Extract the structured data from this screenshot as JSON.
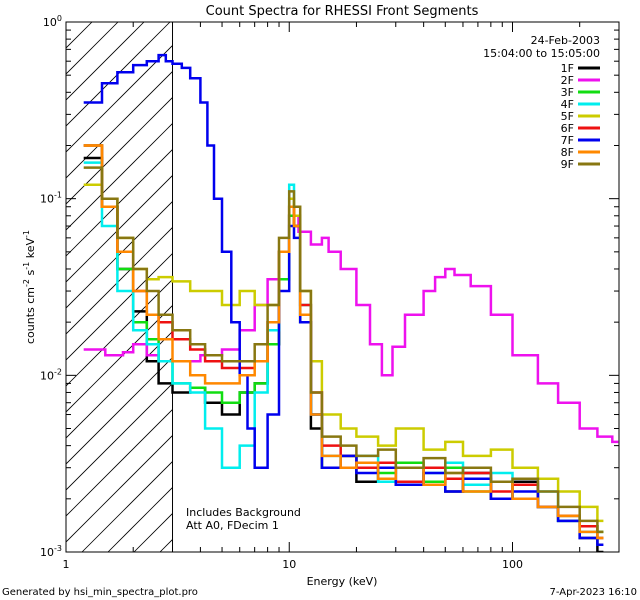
{
  "chart_data": {
    "type": "line",
    "title": "Count Spectra for RHESSI Front Segments",
    "xlabel": "Energy (keV)",
    "ylabel_parts": [
      "counts cm",
      "-2",
      " s",
      "-1",
      " keV",
      "-1"
    ],
    "x_scale": "log",
    "y_scale": "log",
    "xlim": [
      1,
      300
    ],
    "ylim": [
      0.001,
      1
    ],
    "x_ticks": [
      {
        "value": 1,
        "label": "1"
      },
      {
        "value": 10,
        "label": "10"
      },
      {
        "value": 100,
        "label": "100"
      }
    ],
    "y_ticks": [
      {
        "value": 1,
        "base": "10",
        "exp": "0"
      },
      {
        "value": 0.1,
        "base": "10",
        "exp": "-1"
      },
      {
        "value": 0.01,
        "base": "10",
        "exp": "-2"
      },
      {
        "value": 0.001,
        "base": "10",
        "exp": "-3"
      }
    ],
    "date": "24-Feb-2003",
    "time_range": "15:04:00 to 15:05:00",
    "annotation_lines": [
      "Includes Background",
      "Att A0, FDecim 1"
    ],
    "threshold_keV": 3,
    "legend_position": "top-right",
    "series": [
      {
        "name": "1F",
        "color": "#000000",
        "points": [
          [
            1.2,
            0.17
          ],
          [
            1.45,
            0.09
          ],
          [
            1.7,
            0.04
          ],
          [
            2.0,
            0.023
          ],
          [
            2.3,
            0.012
          ],
          [
            2.6,
            0.009
          ],
          [
            3.0,
            0.008
          ],
          [
            3.6,
            0.0085
          ],
          [
            4.2,
            0.007
          ],
          [
            5.0,
            0.006
          ],
          [
            6.0,
            0.008
          ],
          [
            7.0,
            0.009
          ],
          [
            8.0,
            0.015
          ],
          [
            9.0,
            0.035
          ],
          [
            10.0,
            0.08
          ],
          [
            10.5,
            0.07
          ],
          [
            11.2,
            0.02
          ],
          [
            12.5,
            0.005
          ],
          [
            14,
            0.003
          ],
          [
            17,
            0.0035
          ],
          [
            20,
            0.0025
          ],
          [
            25,
            0.003
          ],
          [
            30,
            0.0024
          ],
          [
            40,
            0.003
          ],
          [
            50,
            0.0022
          ],
          [
            60,
            0.0028
          ],
          [
            80,
            0.002
          ],
          [
            100,
            0.0025
          ],
          [
            130,
            0.0018
          ],
          [
            160,
            0.0015
          ],
          [
            200,
            0.0012
          ],
          [
            240,
            0.001
          ]
        ]
      },
      {
        "name": "2F",
        "color": "#ee11ee",
        "points": [
          [
            1.2,
            0.014
          ],
          [
            1.5,
            0.013
          ],
          [
            1.8,
            0.0135
          ],
          [
            2.0,
            0.015
          ],
          [
            2.3,
            0.013
          ],
          [
            2.6,
            0.012
          ],
          [
            3.0,
            0.012
          ],
          [
            4.0,
            0.013
          ],
          [
            5.0,
            0.014
          ],
          [
            6.0,
            0.018
          ],
          [
            7.0,
            0.025
          ],
          [
            8.0,
            0.035
          ],
          [
            9.0,
            0.05
          ],
          [
            10.0,
            0.08
          ],
          [
            11.0,
            0.065
          ],
          [
            12.5,
            0.055
          ],
          [
            14,
            0.06
          ],
          [
            15,
            0.05
          ],
          [
            17,
            0.04
          ],
          [
            20,
            0.025
          ],
          [
            23,
            0.015
          ],
          [
            26,
            0.01
          ],
          [
            29,
            0.0145
          ],
          [
            33,
            0.022
          ],
          [
            40,
            0.03
          ],
          [
            45,
            0.036
          ],
          [
            50,
            0.04
          ],
          [
            55,
            0.037
          ],
          [
            65,
            0.032
          ],
          [
            80,
            0.022
          ],
          [
            100,
            0.013
          ],
          [
            130,
            0.009
          ],
          [
            160,
            0.007
          ],
          [
            200,
            0.005
          ],
          [
            240,
            0.0045
          ],
          [
            280,
            0.0042
          ]
        ]
      },
      {
        "name": "3F",
        "color": "#11dd11",
        "points": [
          [
            1.2,
            0.2
          ],
          [
            1.45,
            0.09
          ],
          [
            1.7,
            0.04
          ],
          [
            2.0,
            0.02
          ],
          [
            2.3,
            0.016
          ],
          [
            2.6,
            0.012
          ],
          [
            3.0,
            0.009
          ],
          [
            3.6,
            0.0085
          ],
          [
            4.2,
            0.008
          ],
          [
            5.0,
            0.007
          ],
          [
            6.0,
            0.008
          ],
          [
            7.0,
            0.009
          ],
          [
            8.0,
            0.015
          ],
          [
            9.0,
            0.035
          ],
          [
            10.0,
            0.08
          ],
          [
            10.5,
            0.07
          ],
          [
            11.2,
            0.02
          ],
          [
            12.5,
            0.006
          ],
          [
            14,
            0.003
          ],
          [
            17,
            0.0035
          ],
          [
            20,
            0.003
          ],
          [
            25,
            0.0028
          ],
          [
            30,
            0.0032
          ],
          [
            40,
            0.0025
          ],
          [
            50,
            0.003
          ],
          [
            60,
            0.0022
          ],
          [
            80,
            0.0025
          ],
          [
            100,
            0.002
          ],
          [
            130,
            0.0018
          ],
          [
            160,
            0.0016
          ],
          [
            200,
            0.0014
          ],
          [
            240,
            0.0013
          ]
        ]
      },
      {
        "name": "4F",
        "color": "#00eeee",
        "points": [
          [
            1.2,
            0.16
          ],
          [
            1.45,
            0.07
          ],
          [
            1.7,
            0.03
          ],
          [
            2.0,
            0.018
          ],
          [
            2.3,
            0.015
          ],
          [
            2.6,
            0.012
          ],
          [
            3.0,
            0.009
          ],
          [
            3.6,
            0.008
          ],
          [
            4.2,
            0.005
          ],
          [
            5.0,
            0.003
          ],
          [
            6.0,
            0.004
          ],
          [
            7.0,
            0.008
          ],
          [
            8.0,
            0.018
          ],
          [
            9.0,
            0.05
          ],
          [
            10.0,
            0.12
          ],
          [
            10.5,
            0.08
          ],
          [
            11.2,
            0.025
          ],
          [
            12.5,
            0.006
          ],
          [
            14,
            0.0035
          ],
          [
            17,
            0.003
          ],
          [
            20,
            0.0035
          ],
          [
            25,
            0.0025
          ],
          [
            30,
            0.003
          ],
          [
            40,
            0.0028
          ],
          [
            50,
            0.0032
          ],
          [
            60,
            0.0024
          ],
          [
            80,
            0.0028
          ],
          [
            100,
            0.002
          ],
          [
            130,
            0.0022
          ],
          [
            160,
            0.0015
          ],
          [
            200,
            0.0013
          ],
          [
            240,
            0.0012
          ]
        ]
      },
      {
        "name": "5F",
        "color": "#cccc00",
        "points": [
          [
            1.2,
            0.12
          ],
          [
            1.45,
            0.1
          ],
          [
            1.7,
            0.06
          ],
          [
            2.0,
            0.04
          ],
          [
            2.3,
            0.035
          ],
          [
            2.6,
            0.036
          ],
          [
            3.0,
            0.034
          ],
          [
            3.6,
            0.03
          ],
          [
            4.2,
            0.03
          ],
          [
            5.0,
            0.025
          ],
          [
            6.0,
            0.03
          ],
          [
            7.0,
            0.025
          ],
          [
            8.0,
            0.025
          ],
          [
            9.0,
            0.05
          ],
          [
            10.0,
            0.1
          ],
          [
            10.5,
            0.08
          ],
          [
            11.2,
            0.03
          ],
          [
            12.5,
            0.012
          ],
          [
            14,
            0.006
          ],
          [
            17,
            0.005
          ],
          [
            20,
            0.0045
          ],
          [
            25,
            0.004
          ],
          [
            30,
            0.005
          ],
          [
            40,
            0.0038
          ],
          [
            50,
            0.0042
          ],
          [
            60,
            0.0035
          ],
          [
            80,
            0.0038
          ],
          [
            100,
            0.003
          ],
          [
            130,
            0.0026
          ],
          [
            160,
            0.0022
          ],
          [
            200,
            0.0018
          ],
          [
            240,
            0.0015
          ]
        ]
      },
      {
        "name": "6F",
        "color": "#ee1111",
        "points": [
          [
            1.2,
            0.2
          ],
          [
            1.45,
            0.09
          ],
          [
            1.7,
            0.05
          ],
          [
            2.0,
            0.03
          ],
          [
            2.3,
            0.022
          ],
          [
            2.6,
            0.02
          ],
          [
            3.0,
            0.016
          ],
          [
            3.6,
            0.014
          ],
          [
            4.2,
            0.012
          ],
          [
            5.0,
            0.011
          ],
          [
            6.0,
            0.011
          ],
          [
            7.0,
            0.012
          ],
          [
            8.0,
            0.02
          ],
          [
            9.0,
            0.05
          ],
          [
            10.0,
            0.09
          ],
          [
            10.5,
            0.07
          ],
          [
            11.2,
            0.025
          ],
          [
            12.5,
            0.008
          ],
          [
            14,
            0.004
          ],
          [
            17,
            0.0035
          ],
          [
            20,
            0.003
          ],
          [
            25,
            0.0032
          ],
          [
            30,
            0.0025
          ],
          [
            40,
            0.003
          ],
          [
            50,
            0.0026
          ],
          [
            60,
            0.0028
          ],
          [
            80,
            0.0022
          ],
          [
            100,
            0.0024
          ],
          [
            130,
            0.0018
          ],
          [
            160,
            0.0016
          ],
          [
            200,
            0.0014
          ],
          [
            240,
            0.0012
          ]
        ]
      },
      {
        "name": "7F",
        "color": "#0000ee",
        "points": [
          [
            1.2,
            0.35
          ],
          [
            1.45,
            0.45
          ],
          [
            1.7,
            0.52
          ],
          [
            2.0,
            0.57
          ],
          [
            2.3,
            0.6
          ],
          [
            2.6,
            0.65
          ],
          [
            2.8,
            0.6
          ],
          [
            3.0,
            0.58
          ],
          [
            3.3,
            0.55
          ],
          [
            3.6,
            0.48
          ],
          [
            4.0,
            0.35
          ],
          [
            4.3,
            0.2
          ],
          [
            4.6,
            0.1
          ],
          [
            5.0,
            0.05
          ],
          [
            5.5,
            0.02
          ],
          [
            6.0,
            0.01
          ],
          [
            6.5,
            0.005
          ],
          [
            7.0,
            0.003
          ],
          [
            8.0,
            0.006
          ],
          [
            9.0,
            0.03
          ],
          [
            10.0,
            0.07
          ],
          [
            10.5,
            0.06
          ],
          [
            11.2,
            0.02
          ],
          [
            12.5,
            0.006
          ],
          [
            14,
            0.003
          ],
          [
            17,
            0.0035
          ],
          [
            20,
            0.0028
          ],
          [
            25,
            0.003
          ],
          [
            30,
            0.0024
          ],
          [
            40,
            0.0028
          ],
          [
            50,
            0.0022
          ],
          [
            60,
            0.0026
          ],
          [
            80,
            0.002
          ],
          [
            100,
            0.0022
          ],
          [
            130,
            0.0018
          ],
          [
            160,
            0.0015
          ],
          [
            200,
            0.0012
          ],
          [
            240,
            0.0011
          ]
        ]
      },
      {
        "name": "8F",
        "color": "#ff8800",
        "points": [
          [
            1.2,
            0.2
          ],
          [
            1.45,
            0.09
          ],
          [
            1.7,
            0.05
          ],
          [
            2.0,
            0.03
          ],
          [
            2.3,
            0.022
          ],
          [
            2.6,
            0.016
          ],
          [
            3.0,
            0.012
          ],
          [
            3.6,
            0.01
          ],
          [
            4.2,
            0.009
          ],
          [
            5.0,
            0.009
          ],
          [
            6.0,
            0.01
          ],
          [
            7.0,
            0.012
          ],
          [
            8.0,
            0.02
          ],
          [
            9.0,
            0.05
          ],
          [
            10.0,
            0.09
          ],
          [
            10.5,
            0.07
          ],
          [
            11.2,
            0.022
          ],
          [
            12.5,
            0.006
          ],
          [
            14,
            0.0035
          ],
          [
            17,
            0.003
          ],
          [
            20,
            0.0032
          ],
          [
            25,
            0.0026
          ],
          [
            30,
            0.003
          ],
          [
            40,
            0.0024
          ],
          [
            50,
            0.0028
          ],
          [
            60,
            0.0022
          ],
          [
            80,
            0.0025
          ],
          [
            100,
            0.002
          ],
          [
            130,
            0.0018
          ],
          [
            160,
            0.0016
          ],
          [
            200,
            0.0013
          ],
          [
            240,
            0.0012
          ]
        ]
      },
      {
        "name": "9F",
        "color": "#887711",
        "points": [
          [
            1.2,
            0.15
          ],
          [
            1.45,
            0.1
          ],
          [
            1.7,
            0.06
          ],
          [
            2.0,
            0.04
          ],
          [
            2.3,
            0.03
          ],
          [
            2.6,
            0.022
          ],
          [
            3.0,
            0.018
          ],
          [
            3.6,
            0.015
          ],
          [
            4.2,
            0.013
          ],
          [
            5.0,
            0.012
          ],
          [
            6.0,
            0.012
          ],
          [
            7.0,
            0.015
          ],
          [
            8.0,
            0.025
          ],
          [
            9.0,
            0.06
          ],
          [
            10.0,
            0.11
          ],
          [
            10.5,
            0.09
          ],
          [
            11.2,
            0.03
          ],
          [
            12.5,
            0.008
          ],
          [
            14,
            0.0045
          ],
          [
            17,
            0.004
          ],
          [
            20,
            0.0035
          ],
          [
            25,
            0.0038
          ],
          [
            30,
            0.003
          ],
          [
            40,
            0.0034
          ],
          [
            50,
            0.0028
          ],
          [
            60,
            0.003
          ],
          [
            80,
            0.0025
          ],
          [
            100,
            0.0026
          ],
          [
            130,
            0.0022
          ],
          [
            160,
            0.0018
          ],
          [
            200,
            0.0015
          ],
          [
            240,
            0.0013
          ]
        ]
      }
    ]
  },
  "footer": {
    "left": "Generated by hsi_min_spectra_plot.pro",
    "right": "7-Apr-2023 16:10"
  }
}
